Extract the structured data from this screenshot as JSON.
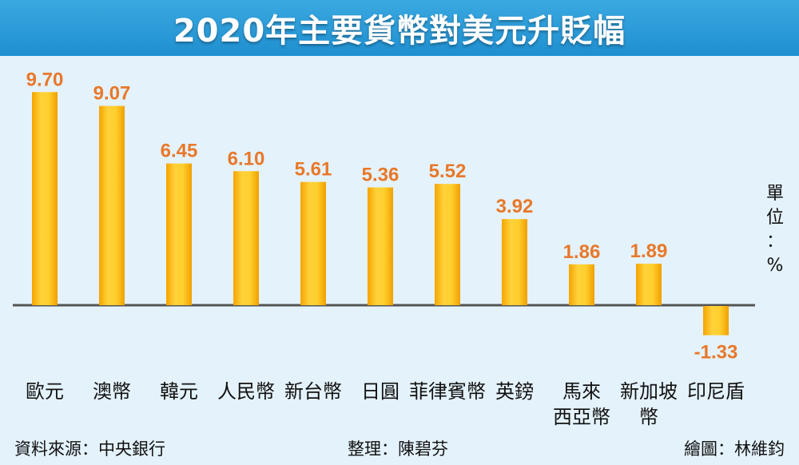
{
  "title": "2020年主要貨幣對美元升貶幅",
  "unit_label": [
    "單",
    "位",
    "：",
    "%"
  ],
  "footer": {
    "source": "資料來源：中央銀行",
    "editor": "整理：陳碧芬",
    "artist": "繪圖：林維鈞"
  },
  "colors": {
    "title_bar": "#1f8fd0",
    "plot_background": "#e4f2fb",
    "bar": "#ffc21f",
    "value_label": "#e8782a",
    "baseline": "#555555"
  },
  "chart_data": {
    "type": "bar",
    "title": "2020年主要貨幣對美元升貶幅",
    "unit": "%",
    "categories": [
      [
        "歐元"
      ],
      [
        "澳幣"
      ],
      [
        "韓元"
      ],
      [
        "人民幣"
      ],
      [
        "新台幣"
      ],
      [
        "日圓"
      ],
      [
        "菲律賓幣"
      ],
      [
        "英鎊"
      ],
      [
        "馬來",
        "西亞幣"
      ],
      [
        "新加坡",
        "幣"
      ],
      [
        "印尼盾"
      ]
    ],
    "values": [
      9.7,
      9.07,
      6.45,
      6.1,
      5.61,
      5.36,
      5.52,
      3.92,
      1.86,
      1.89,
      -1.33
    ],
    "value_labels": [
      "9.70",
      "9.07",
      "6.45",
      "6.10",
      "5.61",
      "5.36",
      "5.52",
      "3.92",
      "1.86",
      "1.89",
      "-1.33"
    ],
    "grid": false,
    "legend": "none"
  }
}
